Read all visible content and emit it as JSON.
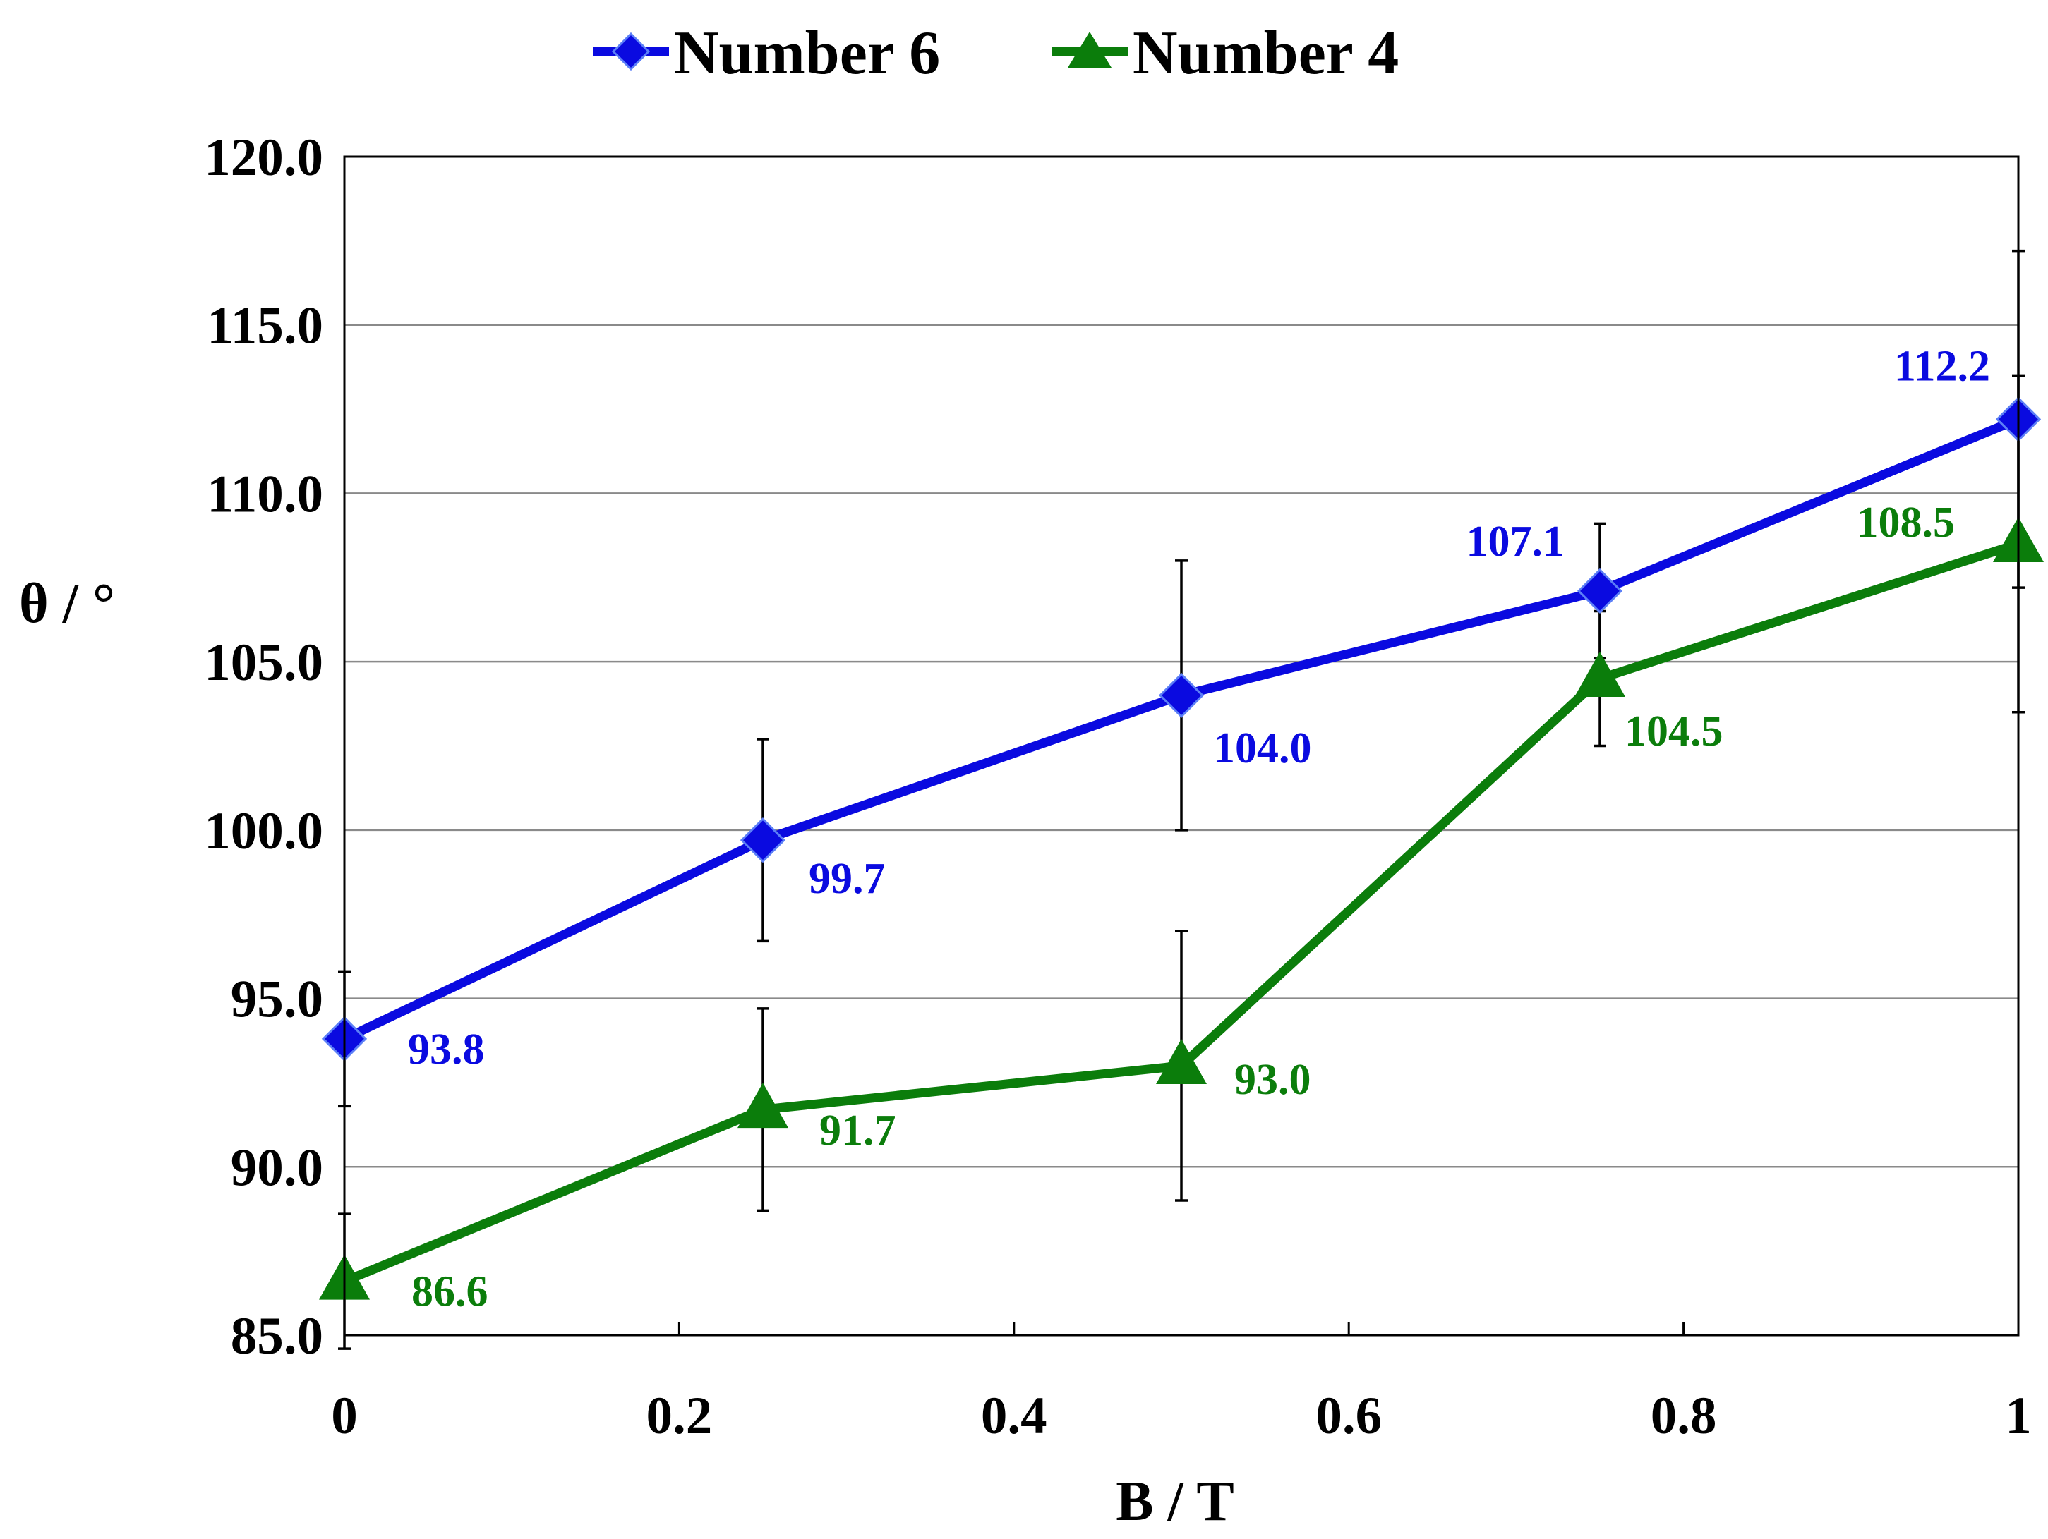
{
  "chart_data": {
    "type": "line",
    "title": "",
    "xlabel": "B / T",
    "ylabel": "θ / °",
    "x": [
      0,
      0.25,
      0.5,
      0.75,
      1
    ],
    "xlim": [
      0,
      1
    ],
    "ylim": [
      85,
      120
    ],
    "x_ticks": [
      0,
      0.2,
      0.4,
      0.6,
      0.8,
      1
    ],
    "x_tick_labels": [
      "0",
      "0.2",
      "0.4",
      "0.6",
      "0.8",
      "1"
    ],
    "y_ticks": [
      85,
      90,
      95,
      100,
      105,
      110,
      115,
      120
    ],
    "y_tick_labels": [
      "85.0",
      "90.0",
      "95.0",
      "100.0",
      "105.0",
      "110.0",
      "115.0",
      "120.0"
    ],
    "grid": "horizontal",
    "legend_position": "top",
    "series": [
      {
        "name": "Number 6",
        "color": "#0a0ae0",
        "marker": "diamond",
        "values": [
          93.8,
          99.7,
          104.0,
          107.1,
          112.2
        ],
        "value_labels": [
          "93.8",
          "99.7",
          "104.0",
          "107.1",
          "112.2"
        ],
        "error": [
          2.0,
          3.0,
          4.0,
          2.0,
          5.0
        ]
      },
      {
        "name": "Number 4",
        "color": "#0b7d0b",
        "marker": "triangle",
        "values": [
          86.6,
          91.7,
          93.0,
          104.5,
          108.5
        ],
        "value_labels": [
          "86.6",
          "91.7",
          "93.0",
          "104.5",
          "108.5"
        ],
        "error": [
          2.0,
          3.0,
          4.0,
          2.0,
          5.0
        ]
      }
    ]
  }
}
